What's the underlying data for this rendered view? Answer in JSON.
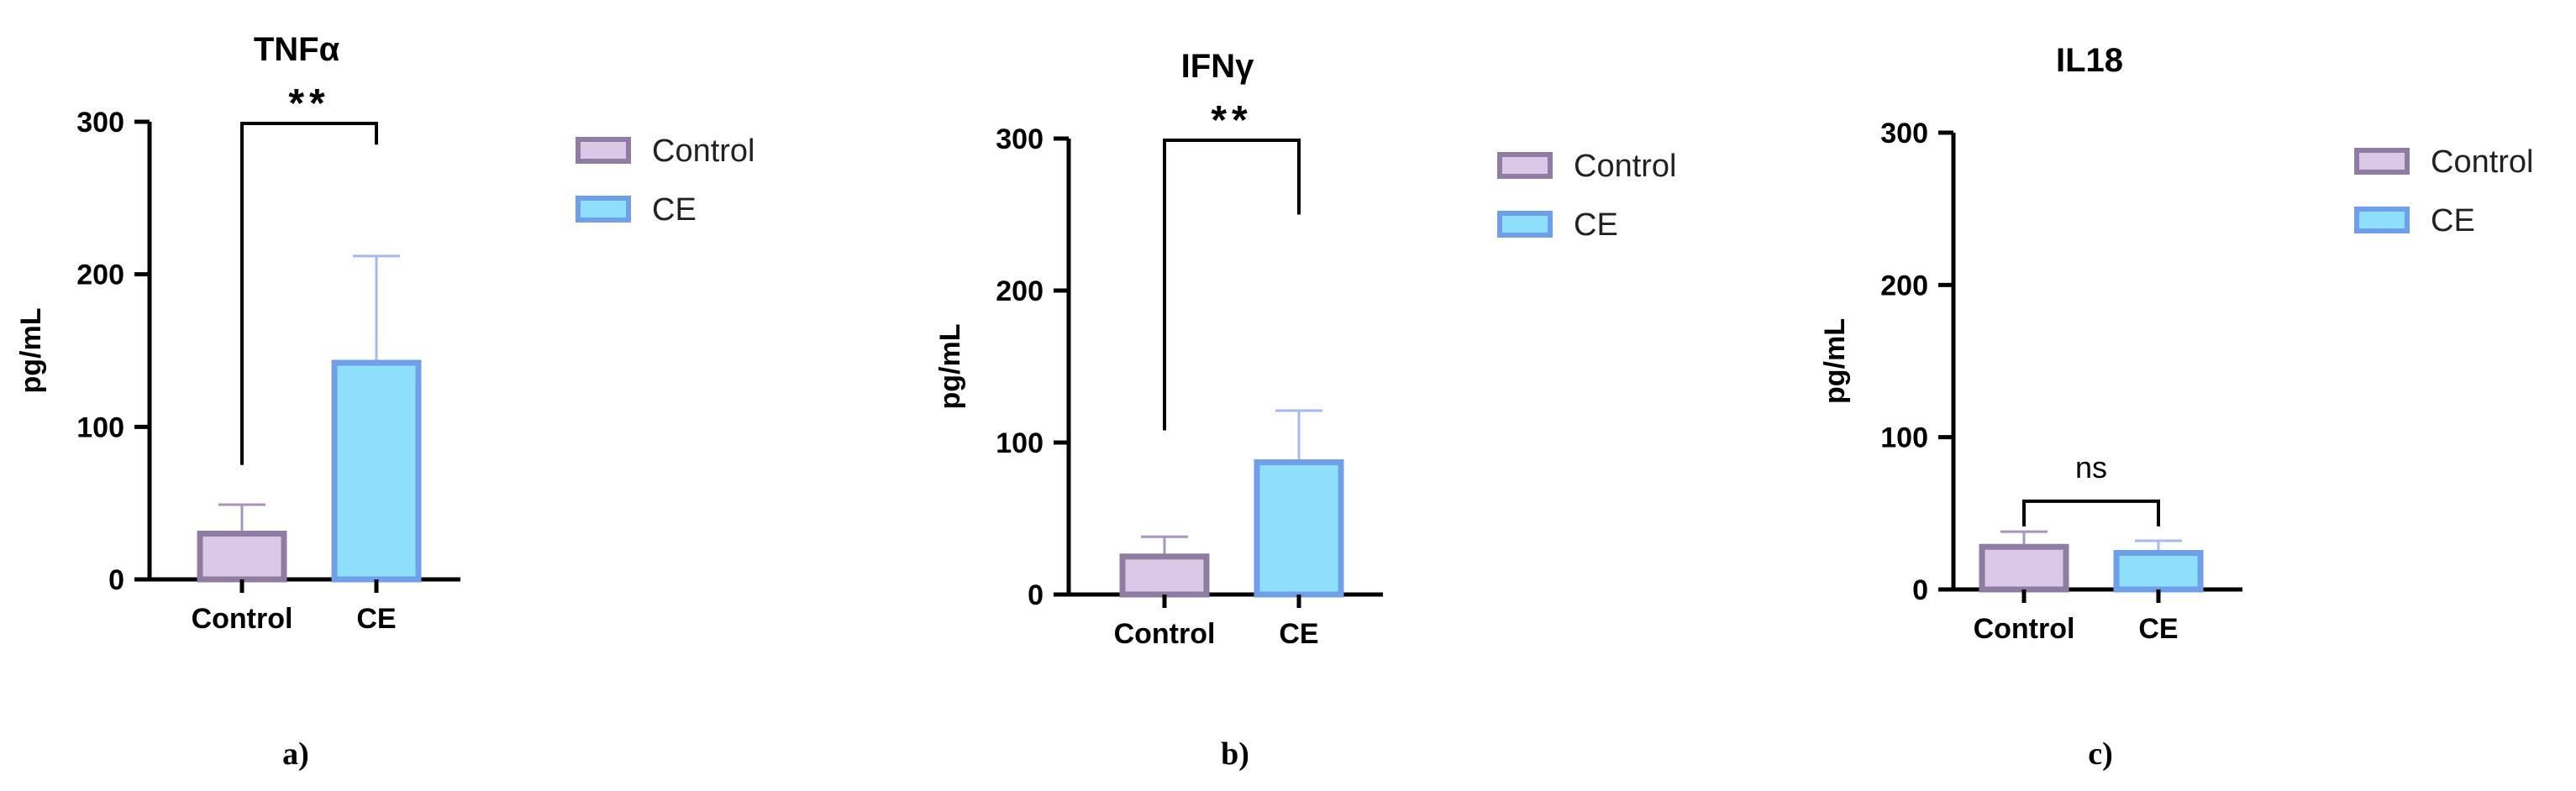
{
  "colors": {
    "control_fill": "#D9C8E6",
    "control_stroke": "#8F7CA3",
    "ce_fill": "#8EE0FA",
    "ce_stroke": "#6F9FE8",
    "control_err": "#A694BC",
    "ce_err": "#A4B8F2",
    "axis": "#000000"
  },
  "chart_data": [
    {
      "type": "bar",
      "title": "TNFα",
      "ylabel": "pg/mL",
      "ylim": [
        0,
        300
      ],
      "yticks": [
        0,
        100,
        200,
        300
      ],
      "categories": [
        "Control",
        "CE"
      ],
      "values": [
        30,
        142
      ],
      "error_upper": [
        49,
        212
      ],
      "significance": {
        "text": "**",
        "left_y": 75,
        "right_y": 285
      },
      "legend": [
        "Control",
        "CE"
      ],
      "panel_label": "a)"
    },
    {
      "type": "bar",
      "title": "IFNγ",
      "ylabel": "pg/mL",
      "ylim": [
        0,
        300
      ],
      "yticks": [
        0,
        100,
        200,
        300
      ],
      "categories": [
        "Control",
        "CE"
      ],
      "values": [
        25,
        87
      ],
      "error_upper": [
        38,
        121
      ],
      "significance": {
        "text": "**",
        "left_y": 108,
        "right_y": 250
      },
      "legend": [
        "Control",
        "CE"
      ],
      "panel_label": "b)"
    },
    {
      "type": "bar",
      "title": "IL18",
      "ylabel": "pg/mL",
      "ylim": [
        0,
        300
      ],
      "yticks": [
        0,
        100,
        200,
        300
      ],
      "categories": [
        "Control",
        "CE"
      ],
      "values": [
        28,
        24
      ],
      "error_upper": [
        38,
        32
      ],
      "significance": {
        "text": "ns",
        "left_y": 58,
        "right_y": 58
      },
      "legend": [
        "Control",
        "CE"
      ],
      "panel_label": "c)"
    }
  ]
}
